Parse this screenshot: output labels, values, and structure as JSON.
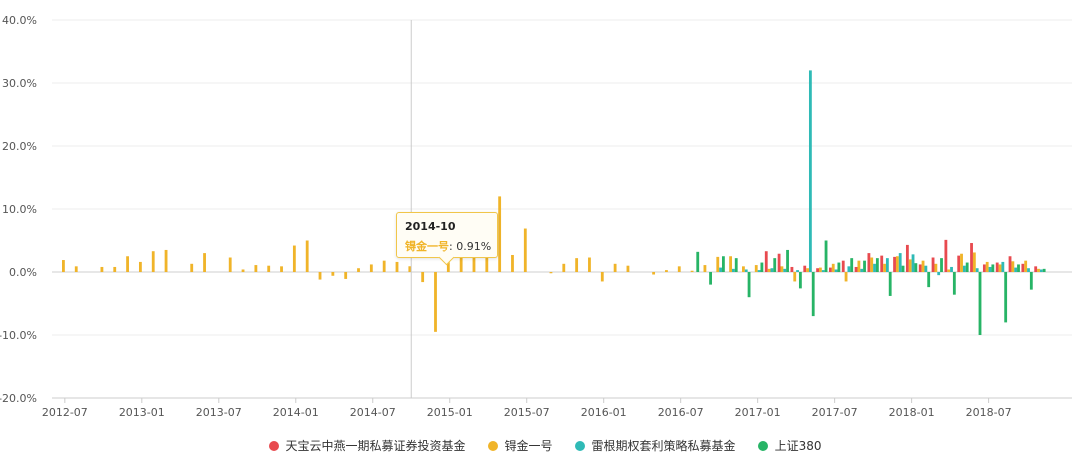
{
  "chart_data": {
    "type": "bar",
    "y_unit": "%",
    "ylim": [
      -20,
      40
    ],
    "yticks": [
      -20,
      -10,
      0,
      10,
      20,
      30,
      40
    ],
    "ytick_labels": [
      "-20.0%",
      "-10.0%",
      "0.0%",
      "10.0%",
      "20.0%",
      "30.0%",
      "40.0%"
    ],
    "xtick_labels": [
      "2012-07",
      "2013-01",
      "2013-07",
      "2014-01",
      "2014-07",
      "2015-01",
      "2015-07",
      "2016-01",
      "2016-07",
      "2017-01",
      "2017-07",
      "2018-01",
      "2018-07"
    ],
    "x_start": "2012-07",
    "x_end": "2018-11",
    "series": [
      {
        "name": "天宝云中燕一期私募证券投资基金",
        "color": "#e84a4f",
        "values": {
          "2017-02": 3.3,
          "2017-03": 2.9,
          "2017-04": 0.8,
          "2017-05": 1.0,
          "2017-06": 0.6,
          "2017-07": 0.7,
          "2017-08": 1.8,
          "2017-09": 0.8,
          "2017-10": 3.0,
          "2017-11": 2.6,
          "2017-12": 2.4,
          "2018-01": 4.3,
          "2018-02": 1.2,
          "2018-03": 2.3,
          "2018-04": 5.1,
          "2018-05": 2.6,
          "2018-06": 4.6,
          "2018-07": 1.2,
          "2018-08": 1.5,
          "2018-09": 2.5,
          "2018-10": 1.3,
          "2018-11": 0.9
        }
      },
      {
        "name": "锝金一号",
        "color": "#f0b429",
        "values": {
          "2012-07": 1.9,
          "2012-08": 0.9,
          "2012-10": 0.8,
          "2012-11": 0.8,
          "2012-12": 2.5,
          "2013-01": 1.6,
          "2013-02": 3.3,
          "2013-03": 3.5,
          "2013-05": 1.3,
          "2013-06": 3.0,
          "2013-08": 2.3,
          "2013-09": 0.4,
          "2013-10": 1.1,
          "2013-11": 1.0,
          "2013-12": 0.9,
          "2014-01": 4.2,
          "2014-02": 5.0,
          "2014-03": -1.2,
          "2014-04": -0.6,
          "2014-05": -1.1,
          "2014-06": 0.6,
          "2014-07": 1.2,
          "2014-08": 1.8,
          "2014-09": 1.6,
          "2014-10": 0.91,
          "2014-11": -1.6,
          "2014-12": -9.5,
          "2015-01": 1.8,
          "2015-02": 2.4,
          "2015-03": 3.2,
          "2015-04": 4.4,
          "2015-05": 12.0,
          "2015-06": 2.7,
          "2015-07": 6.9,
          "2015-09": -0.2,
          "2015-10": 1.3,
          "2015-11": 2.2,
          "2015-12": 2.3,
          "2016-01": -1.5,
          "2016-02": 1.3,
          "2016-03": 1.0,
          "2016-05": -0.4,
          "2016-06": 0.3,
          "2016-07": 0.9,
          "2016-08": 0.2,
          "2016-09": 1.1,
          "2016-10": 2.4,
          "2016-11": 2.5,
          "2016-12": 0.9,
          "2017-01": 1.1,
          "2017-02": 0.5,
          "2017-03": 0.9,
          "2017-04": -1.5,
          "2017-05": 0.6,
          "2017-06": 0.7,
          "2017-07": 1.3,
          "2017-08": -1.5,
          "2017-09": 1.8,
          "2017-10": 2.3,
          "2017-11": 1.3,
          "2017-12": 2.5,
          "2018-01": 2.0,
          "2018-02": 1.8,
          "2018-03": 1.3,
          "2018-04": 0.4,
          "2018-05": 2.9,
          "2018-06": 3.1,
          "2018-07": 1.6,
          "2018-08": 1.2,
          "2018-09": 1.7,
          "2018-10": 1.8,
          "2018-11": 0.5
        }
      },
      {
        "name": "雷根期权套利策略私募基金",
        "color": "#2fbab6",
        "values": {
          "2016-10": 0.7,
          "2016-11": 0.5,
          "2016-12": 0.4,
          "2017-01": 0.3,
          "2017-02": 0.6,
          "2017-03": 0.5,
          "2017-04": 0.3,
          "2017-05": 32.0,
          "2017-06": 0.3,
          "2017-07": 0.4,
          "2017-08": 0.9,
          "2017-09": 0.5,
          "2017-10": 1.3,
          "2017-11": 2.2,
          "2017-12": 3.0,
          "2018-01": 2.8,
          "2018-02": 1.0,
          "2018-03": -0.5,
          "2018-04": 0.8,
          "2018-05": 1.0,
          "2018-06": 0.6,
          "2018-07": 0.8,
          "2018-08": 1.6,
          "2018-09": 0.7,
          "2018-10": 0.6,
          "2018-11": 0.4
        }
      },
      {
        "name": "上证380",
        "color": "#27b466",
        "values": {
          "2016-08": 3.2,
          "2016-09": -2.0,
          "2016-10": 2.5,
          "2016-11": 2.2,
          "2016-12": -4.0,
          "2017-01": 1.5,
          "2017-02": 2.2,
          "2017-03": 3.5,
          "2017-04": -2.6,
          "2017-05": -7.0,
          "2017-06": 5.0,
          "2017-07": 1.5,
          "2017-08": 2.2,
          "2017-09": 1.8,
          "2017-10": 2.2,
          "2017-11": -3.8,
          "2017-12": 1.0,
          "2018-01": 1.4,
          "2018-02": -2.4,
          "2018-03": 2.2,
          "2018-04": -3.6,
          "2018-05": 1.5,
          "2018-06": -10.0,
          "2018-07": 1.2,
          "2018-08": -8.0,
          "2018-09": 1.2,
          "2018-10": -2.8,
          "2018-11": 0.5
        }
      }
    ],
    "tooltip": {
      "date": "2014-10",
      "series_name": "锝金一号",
      "separator": ": ",
      "value_label": "0.91%"
    }
  }
}
